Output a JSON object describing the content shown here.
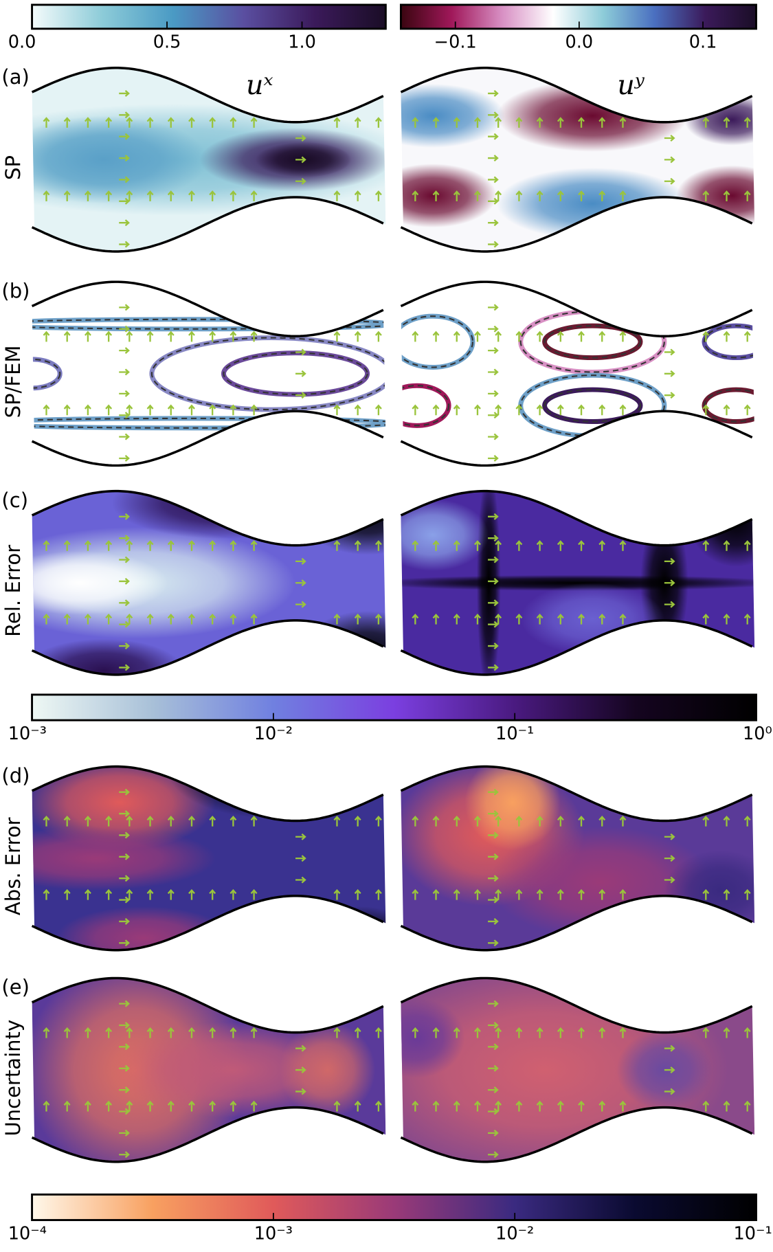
{
  "chart_data": {
    "type": "heatmap-grid",
    "column_titles": [
      "uˣ",
      "uʸ"
    ],
    "panel_labels": [
      "(a)",
      "(b)",
      "(c)",
      "(d)",
      "(e)"
    ],
    "row_labels": [
      "SP",
      "SP/FEM",
      "Rel. Error",
      "Abs. Error",
      "Uncertainty"
    ],
    "colorbars": [
      {
        "lim": [
          0,
          1.31
        ],
        "log": false,
        "colors": [
          "#f4fbfb",
          "#8ccbd8",
          "#4a9ac4",
          "#5a4ea0",
          "#3b1a5a",
          "#1a0d26"
        ],
        "ticks": [
          {
            "value": 0,
            "label": "0.0"
          },
          {
            "value": 0.5,
            "label": "0.5"
          },
          {
            "value": 1,
            "label": "1.0"
          }
        ]
      },
      {
        "lim": [
          -0.144,
          0.143
        ],
        "log": false,
        "colors": [
          "#3a0510",
          "#a0185a",
          "#d890c4",
          "#ffffff",
          "#8ccbd8",
          "#4a6fc0",
          "#3b1a5a",
          "#1a0d26"
        ],
        "ticks": [
          {
            "value": -0.1,
            "label": "−0.1"
          },
          {
            "value": 0,
            "label": "0.0"
          },
          {
            "value": 0.1,
            "label": "0.1"
          }
        ]
      },
      {
        "lim": [
          0.001,
          1
        ],
        "log": true,
        "colors": [
          "#eef8f4",
          "#a8c0d8",
          "#7080e0",
          "#7b3fe0",
          "#4a1a80",
          "#150520",
          "#000000"
        ],
        "ticks": [
          {
            "value": 0.001,
            "label": "10⁻³"
          },
          {
            "value": 0.01,
            "label": "10⁻²"
          },
          {
            "value": 0.1,
            "label": "10⁻¹"
          },
          {
            "value": 1,
            "label": "10⁰"
          }
        ]
      },
      {
        "lim": [
          0.0001,
          0.1
        ],
        "log": true,
        "colors": [
          "#fff8ea",
          "#f8a060",
          "#e05a5a",
          "#9a3a78",
          "#3a2a80",
          "#0a0a30",
          "#000000"
        ],
        "ticks": [
          {
            "value": 0.0001,
            "label": "10⁻⁴"
          },
          {
            "value": 0.001,
            "label": "10⁻³"
          },
          {
            "value": 0.01,
            "label": "10⁻²"
          },
          {
            "value": 0.1,
            "label": "10⁻¹"
          }
        ]
      }
    ]
  }
}
